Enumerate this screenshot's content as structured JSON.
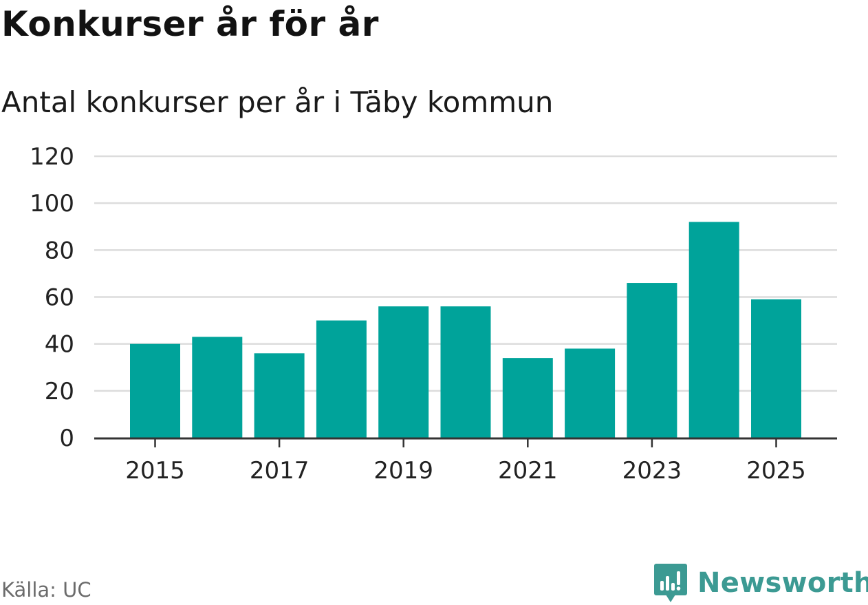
{
  "title": "Konkurser år för år",
  "subtitle": "Antal konkurser per år i Täby kommun",
  "source": "Källa: UC",
  "brand": {
    "name": "Newsworthy",
    "icon": "newsworthy-logo-icon",
    "color": "#3c9a93"
  },
  "colors": {
    "bar": "#00a39a",
    "grid": "#dcdcdc",
    "axis": "#333333",
    "tick_text": "#222222"
  },
  "chart_data": {
    "type": "bar",
    "title": "Konkurser år för år",
    "subtitle": "Antal konkurser per år i Täby kommun",
    "xlabel": "",
    "ylabel": "",
    "categories": [
      "2015",
      "2016",
      "2017",
      "2018",
      "2019",
      "2020",
      "2021",
      "2022",
      "2023",
      "2024",
      "2025"
    ],
    "values": [
      40,
      43,
      36,
      50,
      56,
      56,
      34,
      38,
      66,
      92,
      59
    ],
    "x_tick_labels": [
      "2015",
      "2017",
      "2019",
      "2021",
      "2023",
      "2025"
    ],
    "y_ticks": [
      0,
      20,
      40,
      60,
      80,
      100,
      120
    ],
    "ylim": [
      0,
      120
    ],
    "grid": true,
    "legend": "none"
  }
}
